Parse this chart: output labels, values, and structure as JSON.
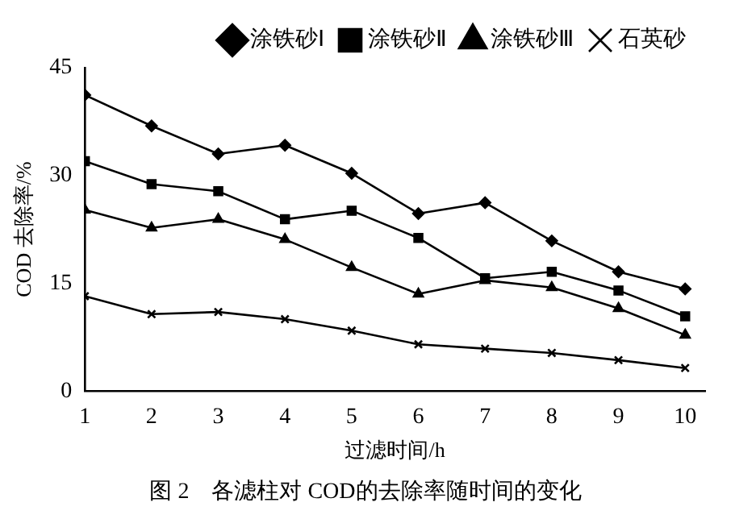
{
  "chart_data": {
    "type": "line",
    "xlabel": "过滤时间/h",
    "ylabel": "COD 去除率/%",
    "annotations": [
      "图 2　各滤柱对 COD的去除率随时间的变化"
    ],
    "x": [
      1,
      2,
      3,
      4,
      5,
      6,
      7,
      8,
      9,
      10
    ],
    "xlim": [
      1,
      10.3
    ],
    "xticks": [
      1,
      2,
      3,
      4,
      5,
      6,
      7,
      8,
      9,
      10
    ],
    "ylim": [
      0,
      45
    ],
    "yticks": [
      0,
      15,
      30,
      45
    ],
    "grid": false,
    "legend": "top right",
    "line_style": "solid",
    "series": [
      {
        "name": "涂铁砂Ⅰ",
        "color": "#000000",
        "marker": "diamond",
        "values": [
          41.2,
          36.9,
          33.0,
          34.2,
          30.3,
          24.7,
          26.2,
          20.9,
          16.6,
          14.2
        ]
      },
      {
        "name": "涂铁砂Ⅱ",
        "color": "#000000",
        "marker": "square",
        "values": [
          32.0,
          28.8,
          27.8,
          23.9,
          25.1,
          21.3,
          15.7,
          16.6,
          14.0,
          10.4
        ]
      },
      {
        "name": "涂铁砂Ⅲ",
        "color": "#000000",
        "marker": "triangle",
        "values": [
          25.2,
          22.7,
          23.9,
          21.1,
          17.2,
          13.5,
          15.4,
          14.4,
          11.5,
          7.8
        ]
      },
      {
        "name": "石英砂",
        "color": "#000000",
        "marker": "cross",
        "values": [
          13.2,
          10.7,
          11.0,
          10.0,
          8.4,
          6.5,
          5.9,
          5.3,
          4.3,
          3.2
        ]
      }
    ]
  }
}
